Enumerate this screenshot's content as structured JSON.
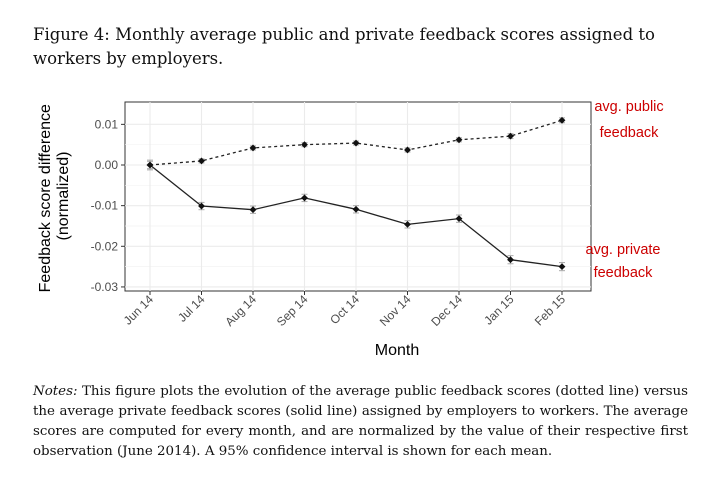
{
  "figure": {
    "caption": "Figure 4:  Monthly average public and private feedback scores assigned to workers by employers.",
    "notes_lead": "Notes:",
    "notes_body": " This figure plots the evolution of the average public feedback scores (dotted line) versus the average private feedback scores (solid line) assigned by employers to workers. The average scores are computed for every month, and are normalized by the value of their respective first observation (June 2014). A 95% confidence interval is shown for each mean."
  },
  "chart_data": {
    "type": "line",
    "title": "",
    "xlabel": "Month",
    "ylabel": "Feedback score difference\n(normalized)",
    "categories": [
      "Jun 14",
      "Jul 14",
      "Aug 14",
      "Sep 14",
      "Oct 14",
      "Nov 14",
      "Dec 14",
      "Jan 15",
      "Feb 15"
    ],
    "ylim": [
      -0.031,
      0.0155
    ],
    "yticks": [
      0.01,
      0.0,
      -0.01,
      -0.02,
      -0.03
    ],
    "ytick_labels": [
      "0.01",
      "0.00",
      "-0.01",
      "-0.02",
      "-0.03"
    ],
    "grid": true,
    "series": [
      {
        "name": "avg. public feedback",
        "line_style": "dotted",
        "values": [
          0.0,
          0.001,
          0.0042,
          0.005,
          0.0054,
          0.0037,
          0.0062,
          0.0071,
          0.011
        ],
        "ci_halfwidth": [
          0.0009,
          0.0005,
          0.0005,
          0.0005,
          0.0005,
          0.0005,
          0.0005,
          0.0006,
          0.0006
        ],
        "annotation": [
          "avg. public",
          "feedback"
        ]
      },
      {
        "name": "avg. private feedback",
        "line_style": "solid",
        "values": [
          0.0,
          -0.0101,
          -0.011,
          -0.0081,
          -0.0109,
          -0.0146,
          -0.0132,
          -0.0233,
          -0.025
        ],
        "ci_halfwidth": [
          0.0012,
          0.0009,
          0.0009,
          0.0009,
          0.0009,
          0.0009,
          0.0009,
          0.001,
          0.001
        ],
        "annotation": [
          "avg. private",
          "feedback"
        ]
      }
    ],
    "colors": {
      "line": "#222222",
      "annotation": "#cc0000",
      "grid": "#ebebeb",
      "errorbar": "#aaaaaa"
    }
  }
}
